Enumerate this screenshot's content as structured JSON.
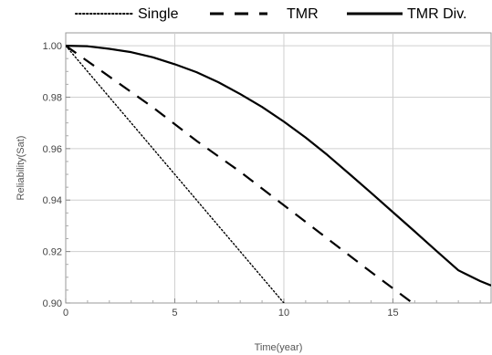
{
  "chart_data": {
    "type": "line",
    "xlabel": "Time(year)",
    "ylabel": "Reliability(Sat)",
    "xlim": [
      0,
      19.5
    ],
    "ylim": [
      0.9,
      1.005
    ],
    "x_ticks": [
      "0",
      "5",
      "10",
      "15"
    ],
    "x_tick_values": [
      0,
      5,
      10,
      15
    ],
    "y_ticks": [
      "0.90",
      "0.92",
      "0.94",
      "0.96",
      "0.98",
      "1.00"
    ],
    "y_tick_values": [
      0.9,
      0.92,
      0.94,
      0.96,
      0.98,
      1.0
    ],
    "grid": true,
    "legend_position": "top",
    "series": [
      {
        "name": "Single",
        "style": "dotted",
        "color": "#000000",
        "x": [
          0,
          2,
          4,
          6,
          8,
          10
        ],
        "y": [
          1.0,
          0.98,
          0.96,
          0.94,
          0.92,
          0.9
        ]
      },
      {
        "name": "TMR",
        "style": "dashed",
        "color": "#000000",
        "x": [
          0,
          2,
          4,
          6,
          8,
          10,
          12,
          14,
          15.9
        ],
        "y": [
          1.0,
          0.988,
          0.976,
          0.963,
          0.951,
          0.938,
          0.925,
          0.912,
          0.9
        ]
      },
      {
        "name": "TMR  Div.",
        "style": "solid",
        "color": "#000000",
        "x": [
          0,
          1,
          2,
          3,
          4,
          5,
          6,
          7,
          8,
          9,
          10,
          11,
          12,
          13,
          14,
          15,
          16,
          17,
          18,
          19,
          19.5
        ],
        "y": [
          1.0,
          0.9998,
          0.9988,
          0.9975,
          0.9955,
          0.9928,
          0.9897,
          0.9858,
          0.9812,
          0.9762,
          0.9705,
          0.9643,
          0.9575,
          0.9502,
          0.9428,
          0.9353,
          0.9278,
          0.9202,
          0.9127,
          0.9085,
          0.9068
        ]
      }
    ]
  }
}
